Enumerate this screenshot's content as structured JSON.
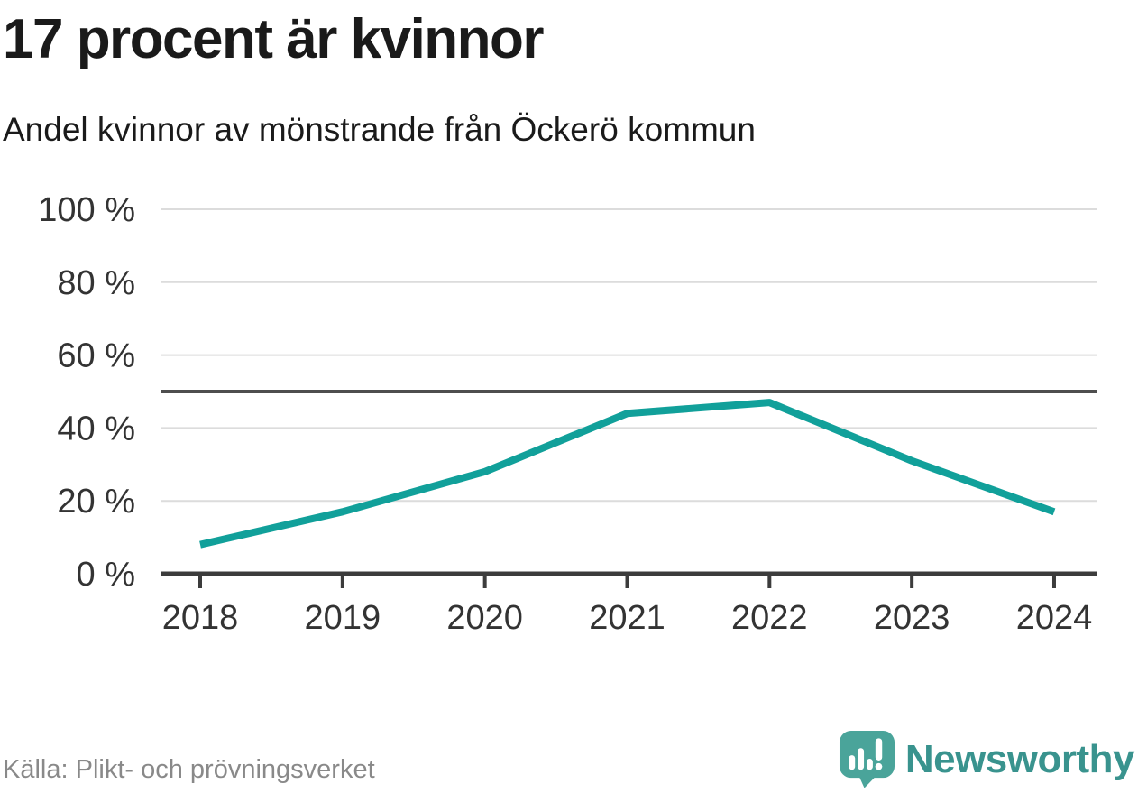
{
  "header": {
    "title": "17 procent är kvinnor",
    "subtitle": "Andel kvinnor av mönstrande från Öckerö kommun"
  },
  "footer": {
    "source": "Källa: Plikt- och prövningsverket",
    "brand": "Newsworthy",
    "brand_icon": "newsworthy-chart-bubble-icon"
  },
  "colors": {
    "line": "#11a09a",
    "gridline": "#dcdcdc",
    "axis": "#3c3c3c",
    "reference_line": "#4e4e4e",
    "title_text": "#1a1a1a",
    "tick_text": "#333333",
    "source_text": "#898989",
    "brand_icon": "#4aa49a",
    "brand_text": "#39938e"
  },
  "chart_data": {
    "type": "line",
    "title": "17 procent är kvinnor",
    "subtitle": "Andel kvinnor av mönstrande från Öckerö kommun",
    "x": [
      2018,
      2019,
      2020,
      2021,
      2022,
      2023,
      2024
    ],
    "xtick_labels": [
      "2018",
      "2019",
      "2020",
      "2021",
      "2022",
      "2023",
      "2024"
    ],
    "series": [
      {
        "name": "Andel kvinnor av mönstrande",
        "values": [
          8,
          17,
          28,
          44,
          47,
          31,
          17
        ]
      }
    ],
    "unit": "%",
    "ylim": [
      0,
      100
    ],
    "yticks": [
      0,
      20,
      40,
      60,
      80,
      100
    ],
    "ytick_suffix": " %",
    "reference_line": 50,
    "grid": true,
    "legend": false,
    "source": "Källa: Plikt- och prövningsverket"
  }
}
